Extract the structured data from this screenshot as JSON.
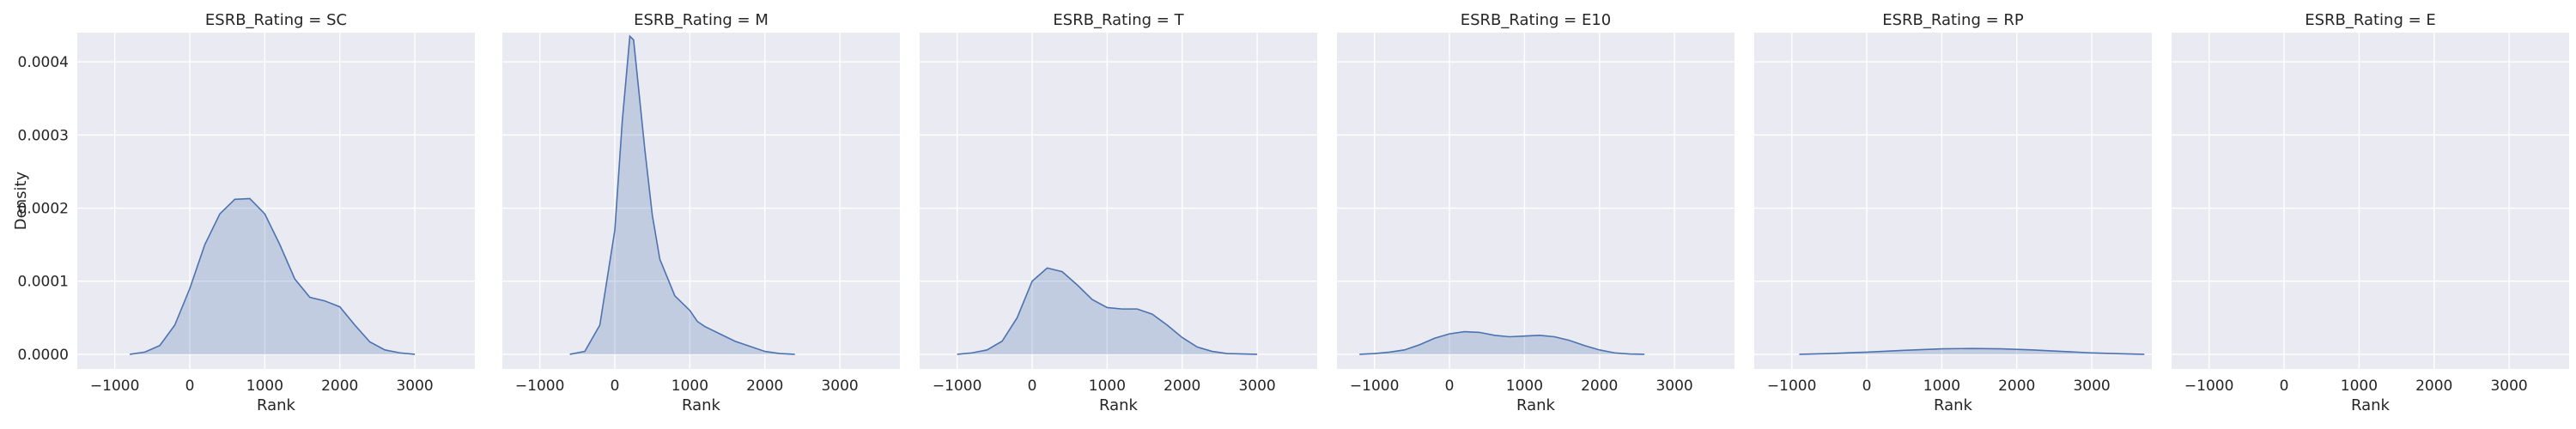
{
  "chart_data": {
    "type": "area",
    "layout": "facet-grid-1x6",
    "ylabel": "Density",
    "xlabel": "Rank",
    "x_ticks": [
      -1000,
      0,
      1000,
      2000,
      3000
    ],
    "y_ticks": [
      "0.0000",
      "0.0001",
      "0.0002",
      "0.0003",
      "0.0004"
    ],
    "xlim": [
      -1500,
      3800
    ],
    "ylim": [
      -2e-05,
      0.00044
    ],
    "grid": true,
    "sharey": true,
    "colors": {
      "line": "#4c72b0",
      "fill": "#4c72b0",
      "panel_bg": "#eaeaf2",
      "grid": "#ffffff"
    },
    "panels": [
      {
        "title": "ESRB_Rating = SC",
        "points": [
          [
            -800,
            0
          ],
          [
            -600,
            3e-06
          ],
          [
            -400,
            1.2e-05
          ],
          [
            -200,
            4e-05
          ],
          [
            0,
            9e-05
          ],
          [
            200,
            0.00015
          ],
          [
            400,
            0.000192
          ],
          [
            600,
            0.000212
          ],
          [
            800,
            0.000213
          ],
          [
            1000,
            0.000192
          ],
          [
            1200,
            0.00015
          ],
          [
            1400,
            0.000103
          ],
          [
            1600,
            7.8e-05
          ],
          [
            1800,
            7.3e-05
          ],
          [
            2000,
            6.5e-05
          ],
          [
            2200,
            4e-05
          ],
          [
            2400,
            1.7e-05
          ],
          [
            2600,
            6e-06
          ],
          [
            2800,
            2e-06
          ],
          [
            3000,
            0
          ]
        ]
      },
      {
        "title": "ESRB_Rating = M",
        "points": [
          [
            -600,
            0
          ],
          [
            -400,
            4e-06
          ],
          [
            -200,
            4e-05
          ],
          [
            0,
            0.00017
          ],
          [
            100,
            0.00032
          ],
          [
            200,
            0.000435
          ],
          [
            250,
            0.00043
          ],
          [
            300,
            0.00038
          ],
          [
            400,
            0.00028
          ],
          [
            500,
            0.00019
          ],
          [
            600,
            0.00013
          ],
          [
            800,
            8e-05
          ],
          [
            1000,
            6e-05
          ],
          [
            1100,
            4.5e-05
          ],
          [
            1200,
            3.8e-05
          ],
          [
            1400,
            2.8e-05
          ],
          [
            1600,
            1.8e-05
          ],
          [
            1800,
            1.1e-05
          ],
          [
            2000,
            4e-06
          ],
          [
            2200,
            1e-06
          ],
          [
            2400,
            0
          ]
        ]
      },
      {
        "title": "ESRB_Rating = T",
        "points": [
          [
            -1000,
            0
          ],
          [
            -800,
            2e-06
          ],
          [
            -600,
            6e-06
          ],
          [
            -400,
            1.8e-05
          ],
          [
            -200,
            5e-05
          ],
          [
            0,
            0.0001
          ],
          [
            200,
            0.000118
          ],
          [
            400,
            0.000113
          ],
          [
            600,
            9.5e-05
          ],
          [
            800,
            7.5e-05
          ],
          [
            1000,
            6.4e-05
          ],
          [
            1200,
            6.2e-05
          ],
          [
            1400,
            6.2e-05
          ],
          [
            1600,
            5.5e-05
          ],
          [
            1800,
            4e-05
          ],
          [
            2000,
            2.3e-05
          ],
          [
            2200,
            1e-05
          ],
          [
            2400,
            4e-06
          ],
          [
            2600,
            1e-06
          ],
          [
            3000,
            0
          ]
        ]
      },
      {
        "title": "ESRB_Rating = E10",
        "points": [
          [
            -1200,
            0
          ],
          [
            -1000,
            1e-06
          ],
          [
            -800,
            3e-06
          ],
          [
            -600,
            6e-06
          ],
          [
            -400,
            1.3e-05
          ],
          [
            -200,
            2.2e-05
          ],
          [
            0,
            2.8e-05
          ],
          [
            200,
            3.1e-05
          ],
          [
            400,
            3e-05
          ],
          [
            600,
            2.6e-05
          ],
          [
            800,
            2.4e-05
          ],
          [
            1000,
            2.5e-05
          ],
          [
            1200,
            2.6e-05
          ],
          [
            1400,
            2.4e-05
          ],
          [
            1600,
            1.9e-05
          ],
          [
            1800,
            1.2e-05
          ],
          [
            2000,
            6e-06
          ],
          [
            2200,
            2e-06
          ],
          [
            2400,
            5e-07
          ],
          [
            2600,
            0
          ]
        ]
      },
      {
        "title": "ESRB_Rating = RP",
        "points": [
          [
            -900,
            0
          ],
          [
            -500,
            1e-06
          ],
          [
            0,
            3e-06
          ],
          [
            500,
            5.5e-06
          ],
          [
            1000,
            7.5e-06
          ],
          [
            1400,
            8e-06
          ],
          [
            1800,
            7.5e-06
          ],
          [
            2200,
            6e-06
          ],
          [
            2600,
            4e-06
          ],
          [
            3000,
            2e-06
          ],
          [
            3400,
            7e-07
          ],
          [
            3700,
            0
          ]
        ]
      },
      {
        "title": "ESRB_Rating = E",
        "points": []
      }
    ]
  }
}
